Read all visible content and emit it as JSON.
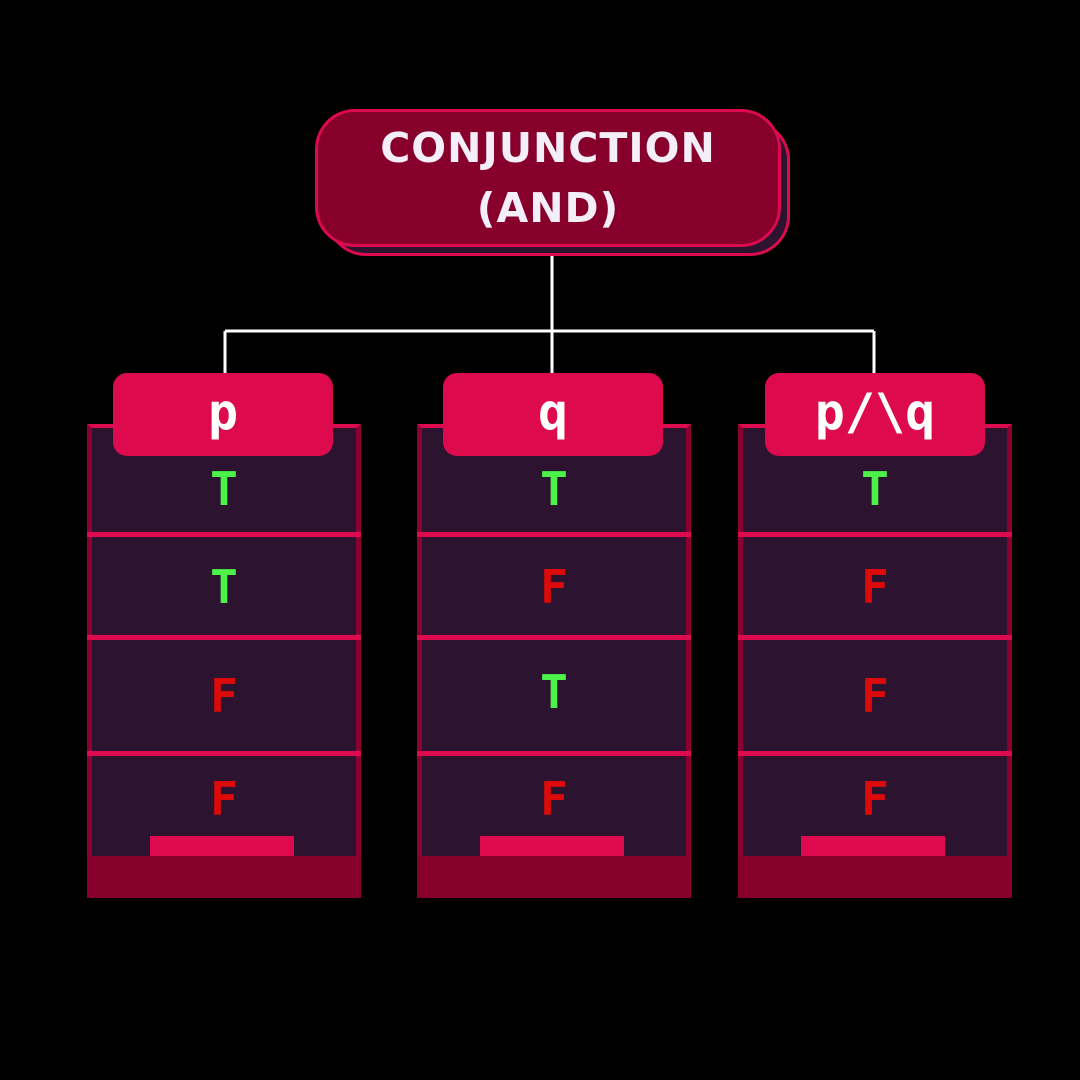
{
  "title": {
    "line1": "CONJUNCTION",
    "line2": "(AND)"
  },
  "columns": [
    {
      "header": "p",
      "values": [
        "T",
        "T",
        "F",
        "F"
      ]
    },
    {
      "header": "q",
      "values": [
        "T",
        "F",
        "T",
        "F"
      ]
    },
    {
      "header": "p/\\q",
      "values": [
        "T",
        "F",
        "F",
        "F"
      ]
    }
  ],
  "colors": {
    "background": "#000000",
    "accent": "#dd0a4e",
    "title_fill": "#86002b",
    "cell_fill": "#2c1430",
    "true": "#4cf24a",
    "false": "#dd0a0a",
    "connector": "#ffffff"
  }
}
